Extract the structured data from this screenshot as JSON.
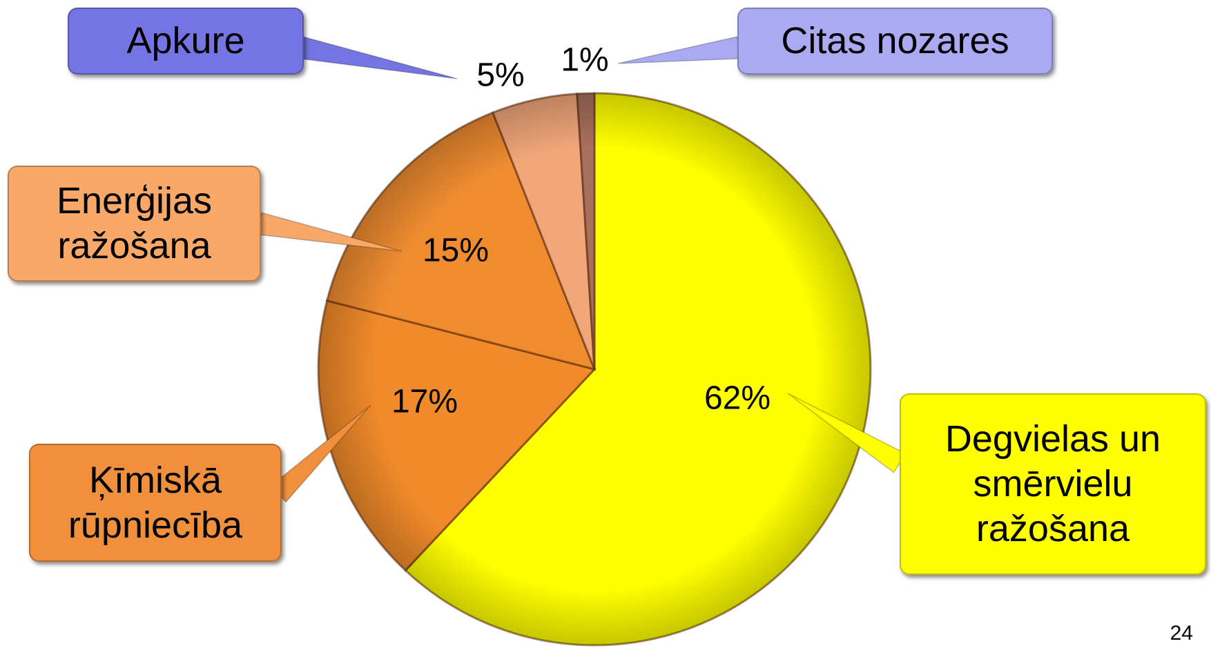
{
  "chart_data": {
    "type": "pie",
    "categories": [
      "Degvielas un smērvielu ražošana",
      "Ķīmiskā rūpniecība",
      "Enerģijas ražošana",
      "Apkure",
      "Citas nozares"
    ],
    "values": [
      62,
      17,
      15,
      5,
      1
    ],
    "value_labels": [
      "62%",
      "17%",
      "15%",
      "5%",
      "1%"
    ],
    "colors": [
      "#ffff00",
      "#f08a2a",
      "#ef8c30",
      "#f2a77a",
      "#a8705e"
    ]
  },
  "page_number": "24"
}
